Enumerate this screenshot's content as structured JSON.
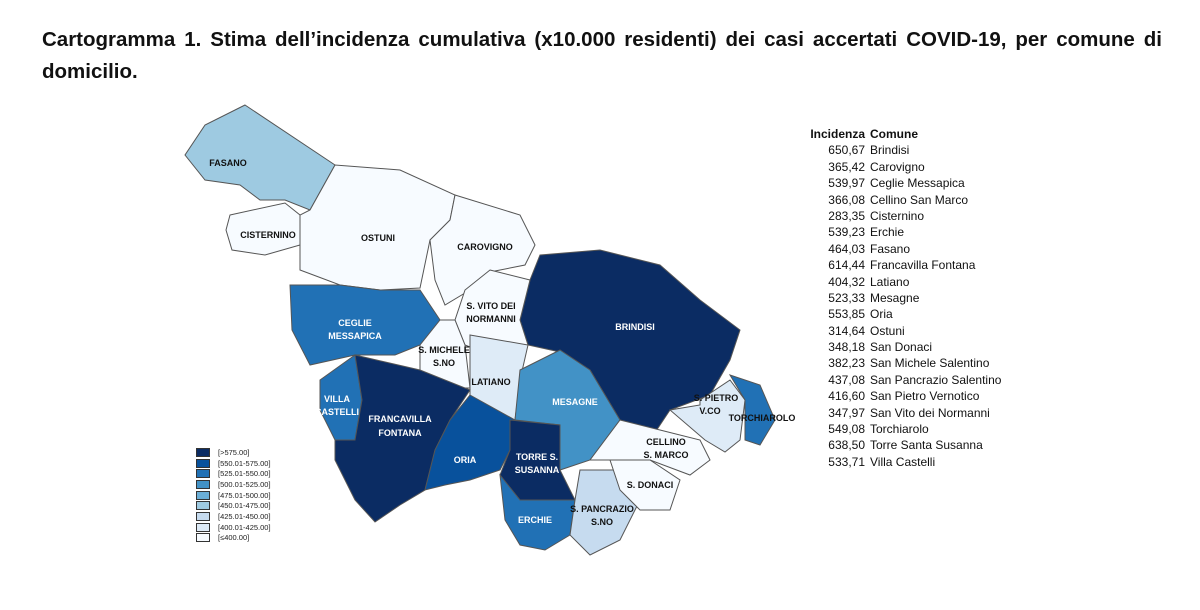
{
  "title": "Cartogramma 1. Stima dell’incidenza cumulativa (x10.000 residenti) dei casi accertati COVID-19, per comune di domicilio.",
  "legend": [
    {
      "label": "[>575.00]",
      "color": "#0b2c63"
    },
    {
      "label": "[550.01-575.00]",
      "color": "#08519c"
    },
    {
      "label": "[525.01-550.00]",
      "color": "#2171b5"
    },
    {
      "label": "[500.01-525.00]",
      "color": "#4292c6"
    },
    {
      "label": "[475.01-500.00]",
      "color": "#6baed6"
    },
    {
      "label": "[450.01-475.00]",
      "color": "#9ecae1"
    },
    {
      "label": "[425.01-450.00]",
      "color": "#c6dbef"
    },
    {
      "label": "[400.01-425.00]",
      "color": "#deebf7"
    },
    {
      "label": "[≤400.00]",
      "color": "#f7fbff"
    }
  ],
  "map_labels": {
    "fasano": "FASANO",
    "cisternino": "CISTERNINO",
    "ostuni": "OSTUNI",
    "carovigno": "CAROVIGNO",
    "svito1": "S. VITO DEI",
    "svito2": "NORMANNI",
    "brindisi": "BRINDISI",
    "ceglie1": "CEGLIE",
    "ceglie2": "MESSAPICA",
    "smichele1": "S. MICHELE",
    "smichele2": "S.NO",
    "latiano": "LATIANO",
    "mesagne": "MESAGNE",
    "villa1": "VILLA",
    "villa2": "CASTELLI",
    "franc1": "FRANCAVILLA",
    "franc2": "FONTANA",
    "oria": "ORIA",
    "torre1": "TORRE S.",
    "torre2": "SUSANNA",
    "erchie": "ERCHIE",
    "spancrazio1": "S. PANCRAZIO",
    "spancrazio2": "S.NO",
    "sdonaci": "S. DONACI",
    "cellino1": "CELLINO",
    "cellino2": "S. MARCO",
    "spietro1": "S. PIETRO",
    "spietro2": "V.CO",
    "torchiarolo": "TORCHIAROLO"
  },
  "table": {
    "header": {
      "value": "Incidenza",
      "name": "Comune"
    },
    "rows": [
      {
        "value": "650,67",
        "name": "Brindisi"
      },
      {
        "value": "365,42",
        "name": "Carovigno"
      },
      {
        "value": "539,97",
        "name": "Ceglie Messapica"
      },
      {
        "value": "366,08",
        "name": "Cellino San Marco"
      },
      {
        "value": "283,35",
        "name": "Cisternino"
      },
      {
        "value": "539,23",
        "name": "Erchie"
      },
      {
        "value": "464,03",
        "name": "Fasano"
      },
      {
        "value": "614,44",
        "name": "Francavilla Fontana"
      },
      {
        "value": "404,32",
        "name": "Latiano"
      },
      {
        "value": "523,33",
        "name": "Mesagne"
      },
      {
        "value": "553,85",
        "name": "Oria"
      },
      {
        "value": "314,64",
        "name": "Ostuni"
      },
      {
        "value": "348,18",
        "name": "San Donaci"
      },
      {
        "value": "382,23",
        "name": "San Michele Salentino"
      },
      {
        "value": "437,08",
        "name": "San Pancrazio Salentino"
      },
      {
        "value": "416,60",
        "name": "San Pietro Vernotico"
      },
      {
        "value": "347,97",
        "name": "San Vito dei Normanni"
      },
      {
        "value": "549,08",
        "name": "Torchiarolo"
      },
      {
        "value": "638,50",
        "name": "Torre Santa Susanna"
      },
      {
        "value": "533,71",
        "name": "Villa Castelli"
      }
    ]
  }
}
